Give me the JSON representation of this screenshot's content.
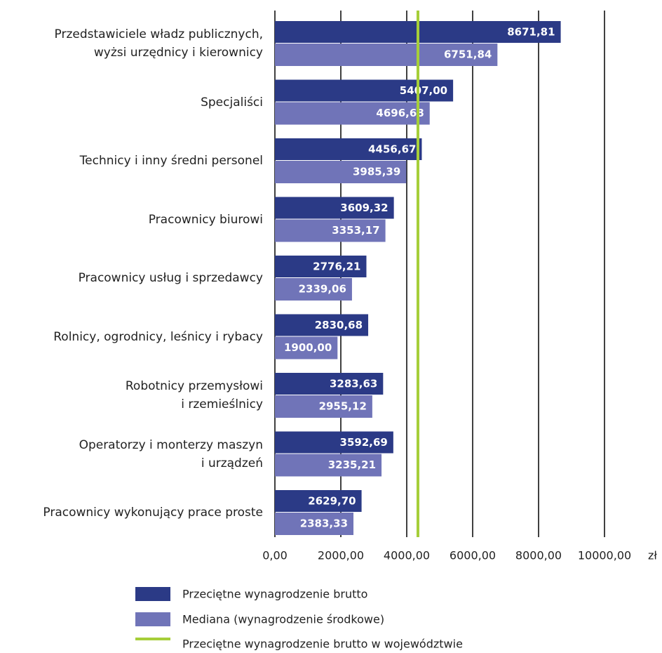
{
  "chart_data": {
    "type": "barh",
    "categories": [
      "Przedstawiciele władz publicznych,\nwyżsi urzędnicy i kierownicy",
      "Specjaliści",
      "Technicy i inny średni personel",
      "Pracownicy biurowi",
      "Pracownicy usług i sprzedawcy",
      "Rolnicy, ogrodnicy, leśnicy i rybacy",
      "Robotnicy przemysłowi\ni rzemieślnicy",
      "Operatorzy i monterzy maszyn\ni urządzeń",
      "Pracownicy wykonujący prace proste"
    ],
    "series": [
      {
        "name": "Przeciętne wynagrodzenie brutto",
        "color": "#2b3a86",
        "values": [
          8671.81,
          5407,
          4456.67,
          3609.32,
          2776.21,
          2830.68,
          3283.63,
          3592.69,
          2629.7
        ],
        "value_labels": [
          "8671,81",
          "5407,00",
          "4456,67",
          "3609,32",
          "2776,21",
          "2830,68",
          "3283,63",
          "3592,69",
          "2629,70"
        ]
      },
      {
        "name": "Mediana (wynagrodzenie środkowe)",
        "color": "#7074b8",
        "values": [
          6751.84,
          4696.68,
          3985.39,
          3353.17,
          2339.06,
          1900,
          2955.12,
          3235.21,
          2383.33
        ],
        "value_labels": [
          "6751,84",
          "4696,68",
          "3985,39",
          "3353,17",
          "2339,06",
          "1900,00",
          "2955,12",
          "3235,21",
          "2383,33"
        ]
      }
    ],
    "reference_line": {
      "name": "Przeciętne wynagrodzenie brutto w województwie",
      "color": "#a6ce39",
      "value": 4340
    },
    "xlim": [
      0,
      10000
    ],
    "xticks": [
      {
        "value": 0,
        "label": "0,00"
      },
      {
        "value": 2000,
        "label": "2000,00"
      },
      {
        "value": 4000,
        "label": "4000,00"
      },
      {
        "value": 6000,
        "label": "6000,00"
      },
      {
        "value": 8000,
        "label": "8000,00"
      },
      {
        "value": 10000,
        "label": "10000,00"
      }
    ],
    "x_unit": "zł",
    "grid": true
  }
}
